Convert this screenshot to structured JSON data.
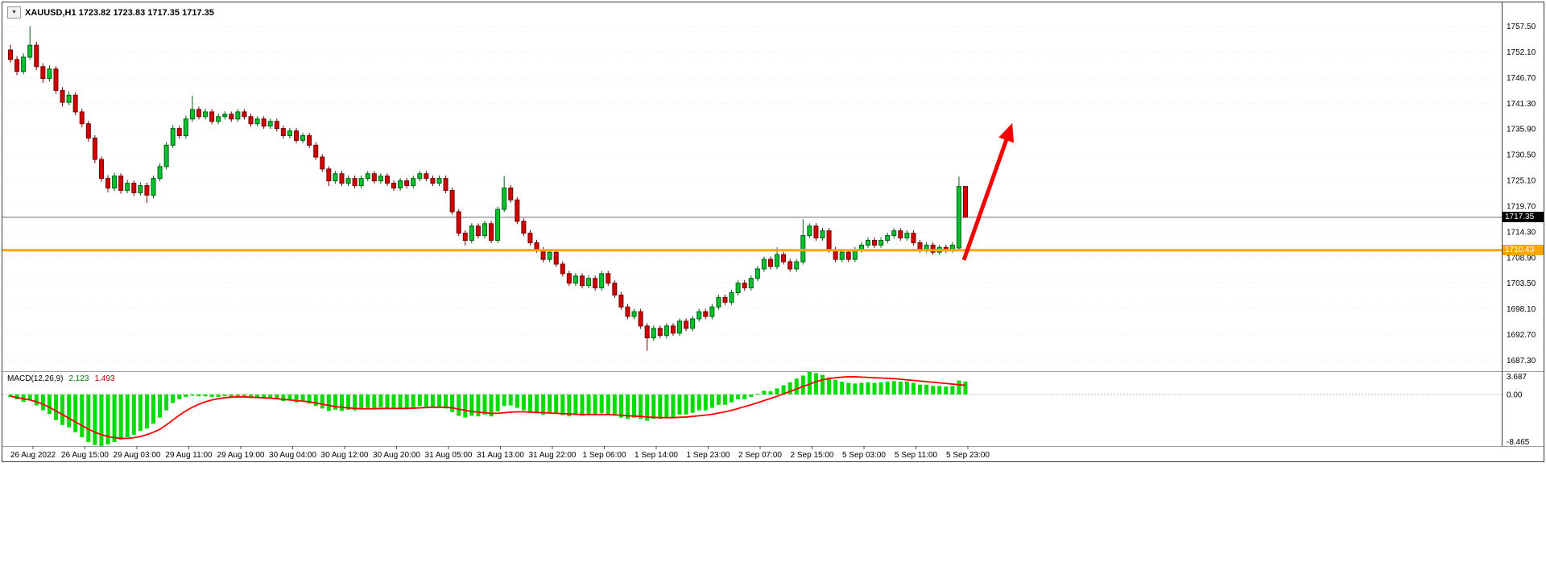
{
  "header": {
    "dropdown_icon": "▼",
    "symbol_info": "XAUUSD,H1 1723.82 1723.83 1717.35 1717.35"
  },
  "chart_data": {
    "type": "candlestick",
    "symbol": "XAUUSD",
    "timeframe": "H1",
    "ohlc_current": {
      "open": 1723.82,
      "high": 1723.83,
      "low": 1717.35,
      "close": 1717.35
    },
    "price_axis": {
      "max": 1762.5,
      "min": 1685.0,
      "labels": [
        "1757.50",
        "1752.10",
        "1746.70",
        "1741.30",
        "1735.90",
        "1730.50",
        "1725.10",
        "1719.70",
        "1714.30",
        "1708.90",
        "1703.50",
        "1698.10",
        "1692.70",
        "1687.30"
      ]
    },
    "current_price": {
      "value": "1717.35",
      "price": 1717.35
    },
    "hline": {
      "label": "1710.43",
      "price": 1710.43,
      "color": "#FFA500"
    },
    "arrow": {
      "from": [
        1194,
        320
      ],
      "to": [
        1252,
        156
      ],
      "color": "#F40000"
    },
    "time_axis": [
      "26 Aug 2022",
      "26 Aug 15:00",
      "29 Aug 03:00",
      "29 Aug 11:00",
      "29 Aug 19:00",
      "30 Aug 04:00",
      "30 Aug 12:00",
      "30 Aug 20:00",
      "31 Aug 05:00",
      "31 Aug 13:00",
      "31 Aug 22:00",
      "1 Sep 06:00",
      "1 Sep 14:00",
      "1 Sep 23:00",
      "2 Sep 07:00",
      "2 Sep 15:00",
      "5 Sep 03:00",
      "5 Sep 11:00",
      "5 Sep 23:00"
    ],
    "colors": {
      "bull": "#00C42D",
      "bull_wick": "#005c12",
      "bear": "#D40000",
      "bear_wick": "#6e0000",
      "grid": "#e7e7e7",
      "hist": "#00DC00",
      "signal": "#FF0000"
    },
    "candles": [
      [
        1752.5,
        1753.6,
        1749.8,
        1750.5
      ],
      [
        1750.5,
        1751.2,
        1747.2,
        1748.0
      ],
      [
        1748.0,
        1751.8,
        1747.4,
        1751.0
      ],
      [
        1751.0,
        1757.5,
        1750.4,
        1753.5
      ],
      [
        1753.5,
        1754.2,
        1748.3,
        1749.0
      ],
      [
        1749.0,
        1749.7,
        1745.6,
        1746.5
      ],
      [
        1746.5,
        1749.3,
        1745.9,
        1748.5
      ],
      [
        1748.5,
        1749.1,
        1743.3,
        1744.0
      ],
      [
        1744.0,
        1744.7,
        1740.6,
        1741.5
      ],
      [
        1741.5,
        1743.8,
        1740.9,
        1743.0
      ],
      [
        1743.0,
        1743.6,
        1738.8,
        1739.5
      ],
      [
        1739.5,
        1740.2,
        1736.3,
        1737.0
      ],
      [
        1737.0,
        1737.6,
        1733.2,
        1734.0
      ],
      [
        1734.0,
        1734.6,
        1728.7,
        1729.5
      ],
      [
        1729.5,
        1730.1,
        1724.8,
        1725.5
      ],
      [
        1725.5,
        1726.2,
        1722.6,
        1723.5
      ],
      [
        1723.5,
        1726.7,
        1722.9,
        1726.0
      ],
      [
        1726.0,
        1726.6,
        1722.3,
        1723.0
      ],
      [
        1723.0,
        1725.2,
        1722.4,
        1724.5
      ],
      [
        1724.5,
        1725.1,
        1721.8,
        1722.5
      ],
      [
        1722.5,
        1724.7,
        1721.9,
        1724.0
      ],
      [
        1724.0,
        1724.6,
        1720.4,
        1722.0
      ],
      [
        1722.0,
        1726.1,
        1721.4,
        1725.5
      ],
      [
        1725.5,
        1728.7,
        1724.9,
        1728.0
      ],
      [
        1728.0,
        1733.2,
        1727.4,
        1732.5
      ],
      [
        1732.5,
        1736.7,
        1731.9,
        1736.0
      ],
      [
        1736.0,
        1736.6,
        1733.9,
        1734.5
      ],
      [
        1734.5,
        1738.7,
        1733.9,
        1738.0
      ],
      [
        1738.0,
        1742.9,
        1737.4,
        1740.0
      ],
      [
        1740.0,
        1740.6,
        1737.9,
        1738.5
      ],
      [
        1738.5,
        1740.2,
        1737.9,
        1739.5
      ],
      [
        1739.5,
        1740.1,
        1736.9,
        1737.5
      ],
      [
        1737.5,
        1739.1,
        1736.9,
        1738.5
      ],
      [
        1738.5,
        1739.6,
        1737.9,
        1739.0
      ],
      [
        1739.0,
        1739.6,
        1737.4,
        1738.0
      ],
      [
        1738.0,
        1740.1,
        1737.4,
        1739.5
      ],
      [
        1739.5,
        1740.1,
        1737.9,
        1738.5
      ],
      [
        1738.5,
        1739.1,
        1736.4,
        1737.0
      ],
      [
        1737.0,
        1738.6,
        1736.4,
        1738.0
      ],
      [
        1738.0,
        1738.6,
        1735.9,
        1736.5
      ],
      [
        1736.5,
        1738.1,
        1735.9,
        1737.5
      ],
      [
        1737.5,
        1738.1,
        1735.4,
        1736.0
      ],
      [
        1736.0,
        1736.6,
        1733.9,
        1734.5
      ],
      [
        1734.5,
        1736.1,
        1733.9,
        1735.5
      ],
      [
        1735.5,
        1736.1,
        1732.9,
        1733.5
      ],
      [
        1733.5,
        1735.1,
        1732.9,
        1734.5
      ],
      [
        1734.5,
        1735.1,
        1731.9,
        1732.5
      ],
      [
        1732.5,
        1733.1,
        1729.4,
        1730.0
      ],
      [
        1730.0,
        1730.6,
        1726.9,
        1727.5
      ],
      [
        1727.5,
        1728.1,
        1723.9,
        1725.0
      ],
      [
        1725.0,
        1727.1,
        1724.4,
        1726.5
      ],
      [
        1726.5,
        1727.1,
        1723.9,
        1724.5
      ],
      [
        1724.5,
        1726.1,
        1723.9,
        1725.5
      ],
      [
        1725.5,
        1726.1,
        1723.4,
        1724.0
      ],
      [
        1724.0,
        1726.1,
        1723.4,
        1725.5
      ],
      [
        1725.5,
        1727.1,
        1724.9,
        1726.5
      ],
      [
        1726.5,
        1727.1,
        1724.4,
        1725.0
      ],
      [
        1725.0,
        1726.6,
        1724.4,
        1726.0
      ],
      [
        1726.0,
        1726.6,
        1723.9,
        1724.5
      ],
      [
        1724.5,
        1725.1,
        1722.9,
        1723.5
      ],
      [
        1723.5,
        1725.6,
        1722.9,
        1725.0
      ],
      [
        1725.0,
        1725.6,
        1723.4,
        1724.0
      ],
      [
        1724.0,
        1726.1,
        1723.4,
        1725.5
      ],
      [
        1725.5,
        1727.1,
        1724.9,
        1726.5
      ],
      [
        1726.5,
        1727.1,
        1724.9,
        1725.5
      ],
      [
        1725.5,
        1726.1,
        1723.9,
        1724.5
      ],
      [
        1724.5,
        1726.1,
        1723.9,
        1725.5
      ],
      [
        1725.5,
        1726.1,
        1722.4,
        1723.0
      ],
      [
        1723.0,
        1723.6,
        1717.9,
        1718.5
      ],
      [
        1718.5,
        1719.1,
        1713.4,
        1714.0
      ],
      [
        1714.0,
        1714.6,
        1711.4,
        1712.5
      ],
      [
        1712.5,
        1716.1,
        1711.9,
        1715.5
      ],
      [
        1715.5,
        1716.1,
        1712.9,
        1713.5
      ],
      [
        1713.5,
        1716.6,
        1712.9,
        1716.0
      ],
      [
        1716.0,
        1716.6,
        1711.9,
        1712.5
      ],
      [
        1712.5,
        1719.6,
        1711.9,
        1719.0
      ],
      [
        1719.0,
        1726.0,
        1718.4,
        1723.5
      ],
      [
        1723.5,
        1724.1,
        1720.4,
        1721.0
      ],
      [
        1721.0,
        1721.6,
        1715.9,
        1716.5
      ],
      [
        1716.5,
        1717.1,
        1713.4,
        1714.0
      ],
      [
        1714.0,
        1714.6,
        1711.4,
        1712.0
      ],
      [
        1712.0,
        1712.6,
        1709.9,
        1710.5
      ],
      [
        1710.5,
        1711.1,
        1707.9,
        1708.5
      ],
      [
        1708.5,
        1710.6,
        1707.9,
        1710.0
      ],
      [
        1710.0,
        1710.6,
        1706.9,
        1707.5
      ],
      [
        1707.5,
        1708.1,
        1704.9,
        1705.5
      ],
      [
        1705.5,
        1706.1,
        1702.9,
        1703.5
      ],
      [
        1703.5,
        1705.6,
        1702.9,
        1705.0
      ],
      [
        1705.0,
        1705.6,
        1702.4,
        1703.0
      ],
      [
        1703.0,
        1705.1,
        1702.4,
        1704.5
      ],
      [
        1704.5,
        1705.1,
        1701.9,
        1702.5
      ],
      [
        1702.5,
        1706.1,
        1701.9,
        1705.5
      ],
      [
        1705.5,
        1706.1,
        1702.9,
        1703.5
      ],
      [
        1703.5,
        1704.1,
        1700.4,
        1701.0
      ],
      [
        1701.0,
        1701.6,
        1697.9,
        1698.5
      ],
      [
        1698.5,
        1699.1,
        1695.9,
        1696.5
      ],
      [
        1696.5,
        1698.1,
        1695.9,
        1697.5
      ],
      [
        1697.5,
        1698.1,
        1693.9,
        1694.5
      ],
      [
        1694.5,
        1695.1,
        1689.3,
        1692.0
      ],
      [
        1692.0,
        1694.6,
        1691.4,
        1694.0
      ],
      [
        1694.0,
        1694.6,
        1691.9,
        1692.5
      ],
      [
        1692.5,
        1695.1,
        1691.9,
        1694.5
      ],
      [
        1694.5,
        1695.1,
        1692.4,
        1693.0
      ],
      [
        1693.0,
        1696.1,
        1692.4,
        1695.5
      ],
      [
        1695.5,
        1696.1,
        1693.4,
        1694.0
      ],
      [
        1694.0,
        1696.6,
        1693.4,
        1696.0
      ],
      [
        1696.0,
        1698.1,
        1695.4,
        1697.5
      ],
      [
        1697.5,
        1698.1,
        1695.9,
        1696.5
      ],
      [
        1696.5,
        1699.1,
        1695.9,
        1698.5
      ],
      [
        1698.5,
        1701.1,
        1697.9,
        1700.5
      ],
      [
        1700.5,
        1701.1,
        1698.9,
        1699.5
      ],
      [
        1699.5,
        1702.1,
        1698.9,
        1701.5
      ],
      [
        1701.5,
        1704.1,
        1700.9,
        1703.5
      ],
      [
        1703.5,
        1704.1,
        1701.9,
        1702.5
      ],
      [
        1702.5,
        1705.1,
        1701.9,
        1704.5
      ],
      [
        1704.5,
        1707.1,
        1703.9,
        1706.5
      ],
      [
        1706.5,
        1709.1,
        1705.9,
        1708.5
      ],
      [
        1708.5,
        1709.1,
        1706.4,
        1707.0
      ],
      [
        1707.0,
        1711.0,
        1706.4,
        1709.5
      ],
      [
        1709.5,
        1710.1,
        1707.4,
        1708.0
      ],
      [
        1708.0,
        1708.6,
        1705.9,
        1706.5
      ],
      [
        1706.5,
        1708.6,
        1705.9,
        1708.0
      ],
      [
        1708.0,
        1716.9,
        1707.4,
        1713.5
      ],
      [
        1713.5,
        1716.1,
        1712.9,
        1715.5
      ],
      [
        1715.5,
        1716.1,
        1712.4,
        1713.0
      ],
      [
        1713.0,
        1715.1,
        1712.4,
        1714.5
      ],
      [
        1714.5,
        1715.1,
        1709.9,
        1710.5
      ],
      [
        1710.5,
        1711.1,
        1707.9,
        1708.5
      ],
      [
        1708.5,
        1710.6,
        1707.9,
        1710.0
      ],
      [
        1710.0,
        1710.6,
        1707.9,
        1708.5
      ],
      [
        1708.5,
        1711.1,
        1707.9,
        1710.5
      ],
      [
        1710.5,
        1712.1,
        1709.9,
        1711.5
      ],
      [
        1711.5,
        1713.1,
        1710.9,
        1712.5
      ],
      [
        1712.5,
        1713.1,
        1710.9,
        1711.5
      ],
      [
        1711.5,
        1713.1,
        1710.9,
        1712.5
      ],
      [
        1712.5,
        1714.1,
        1711.9,
        1713.5
      ],
      [
        1713.5,
        1715.1,
        1712.9,
        1714.5
      ],
      [
        1714.5,
        1715.1,
        1712.4,
        1713.0
      ],
      [
        1713.0,
        1714.6,
        1712.4,
        1714.0
      ],
      [
        1714.0,
        1714.6,
        1711.4,
        1712.0
      ],
      [
        1712.0,
        1712.6,
        1709.9,
        1710.5
      ],
      [
        1710.5,
        1712.1,
        1709.9,
        1711.5
      ],
      [
        1711.5,
        1712.1,
        1709.4,
        1710.0
      ],
      [
        1710.0,
        1711.6,
        1709.4,
        1711.0
      ],
      [
        1711.0,
        1711.6,
        1709.9,
        1710.5
      ],
      [
        1710.5,
        1712.1,
        1709.9,
        1711.5
      ],
      [
        1710.9,
        1725.9,
        1710.3,
        1723.8
      ],
      [
        1723.82,
        1723.83,
        1717.35,
        1717.35
      ]
    ],
    "macd": {
      "label": "MACD(12,26,9)",
      "main_value": "2.123",
      "signal_value": "1.493",
      "max": 3.687,
      "min": -8.465,
      "axis_labels": [
        "3.687",
        "0.00",
        "-8.465"
      ],
      "histogram": [
        -0.4,
        -0.8,
        -1.2,
        -1.0,
        -1.8,
        -2.6,
        -3.2,
        -4.2,
        -5.0,
        -5.4,
        -6.2,
        -7.0,
        -7.8,
        -8.3,
        -8.465,
        -8.2,
        -7.8,
        -7.4,
        -7.0,
        -6.6,
        -6.0,
        -5.6,
        -4.8,
        -3.8,
        -2.6,
        -1.4,
        -0.8,
        -0.4,
        -0.2,
        -0.3,
        -0.3,
        -0.4,
        -0.4,
        -0.3,
        -0.4,
        -0.3,
        -0.4,
        -0.6,
        -0.5,
        -0.7,
        -0.6,
        -0.8,
        -1.1,
        -1.0,
        -1.3,
        -1.2,
        -1.5,
        -1.9,
        -2.3,
        -2.7,
        -2.5,
        -2.7,
        -2.5,
        -2.6,
        -2.4,
        -2.2,
        -2.3,
        -2.1,
        -2.2,
        -2.4,
        -2.2,
        -2.3,
        -2.1,
        -1.9,
        -2.0,
        -2.1,
        -2.0,
        -2.3,
        -2.9,
        -3.5,
        -3.8,
        -3.5,
        -3.6,
        -3.3,
        -3.6,
        -2.8,
        -1.9,
        -1.8,
        -2.2,
        -2.6,
        -2.9,
        -3.1,
        -3.3,
        -3.1,
        -3.2,
        -3.4,
        -3.6,
        -3.4,
        -3.5,
        -3.3,
        -3.4,
        -3.1,
        -3.2,
        -3.5,
        -3.8,
        -4.0,
        -3.8,
        -4.0,
        -4.3,
        -4.0,
        -4.0,
        -3.7,
        -3.7,
        -3.3,
        -3.3,
        -3.0,
        -2.6,
        -2.6,
        -2.2,
        -1.7,
        -1.7,
        -1.3,
        -0.8,
        -0.8,
        -0.4,
        0.1,
        0.6,
        0.5,
        1.0,
        1.5,
        2.0,
        2.6,
        3.1,
        3.687,
        3.5,
        3.2,
        2.8,
        2.4,
        2.1,
        1.9,
        1.8,
        1.9,
        2.0,
        1.9,
        2.0,
        2.1,
        2.2,
        2.1,
        2.1,
        1.9,
        1.6,
        1.6,
        1.4,
        1.4,
        1.3,
        1.4,
        2.3,
        2.123
      ],
      "signal": [
        -0.3,
        -0.5,
        -0.7,
        -0.9,
        -1.2,
        -1.6,
        -2.1,
        -2.7,
        -3.3,
        -3.9,
        -4.5,
        -5.1,
        -5.7,
        -6.2,
        -6.6,
        -6.9,
        -7.1,
        -7.2,
        -7.2,
        -7.1,
        -6.9,
        -6.6,
        -6.2,
        -5.7,
        -5.0,
        -4.2,
        -3.4,
        -2.7,
        -2.1,
        -1.6,
        -1.2,
        -0.9,
        -0.7,
        -0.55,
        -0.45,
        -0.4,
        -0.4,
        -0.45,
        -0.5,
        -0.55,
        -0.6,
        -0.7,
        -0.8,
        -0.9,
        -1.0,
        -1.1,
        -1.2,
        -1.4,
        -1.6,
        -1.8,
        -2.0,
        -2.1,
        -2.2,
        -2.3,
        -2.35,
        -2.35,
        -2.35,
        -2.3,
        -2.3,
        -2.3,
        -2.3,
        -2.3,
        -2.25,
        -2.2,
        -2.15,
        -2.1,
        -2.1,
        -2.1,
        -2.2,
        -2.4,
        -2.6,
        -2.8,
        -2.9,
        -3.0,
        -3.1,
        -3.1,
        -3.0,
        -2.9,
        -2.85,
        -2.85,
        -2.9,
        -2.95,
        -3.0,
        -3.05,
        -3.1,
        -3.15,
        -3.2,
        -3.25,
        -3.3,
        -3.3,
        -3.3,
        -3.3,
        -3.3,
        -3.35,
        -3.4,
        -3.5,
        -3.55,
        -3.6,
        -3.7,
        -3.75,
        -3.8,
        -3.8,
        -3.8,
        -3.75,
        -3.7,
        -3.6,
        -3.5,
        -3.4,
        -3.25,
        -3.05,
        -2.85,
        -2.6,
        -2.3,
        -2.0,
        -1.7,
        -1.35,
        -1.0,
        -0.65,
        -0.3,
        0.1,
        0.5,
        0.9,
        1.3,
        1.7,
        2.1,
        2.4,
        2.6,
        2.75,
        2.85,
        2.9,
        2.9,
        2.85,
        2.8,
        2.75,
        2.7,
        2.65,
        2.6,
        2.5,
        2.4,
        2.3,
        2.2,
        2.1,
        2.0,
        1.9,
        1.8,
        1.7,
        1.6,
        1.493
      ]
    }
  }
}
